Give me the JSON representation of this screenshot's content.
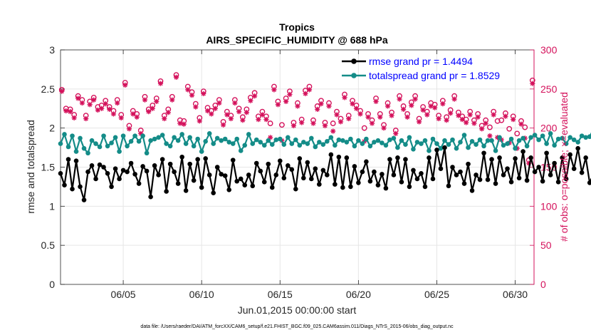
{
  "chart_data": {
    "type": "line",
    "title": "Tropics",
    "subtitle": "AIRS_SPECIFIC_HUMIDITY @ 688 hPa",
    "xlabel": "Jun.01,2015 00:00:00 start",
    "ylabel": "rmse and totalspread",
    "y2label": "# of obs: o=possible; ×=evaluated",
    "footnote": "data file: /Users/raeder/DAI/ATM_forcXX/CAM6_setup/f.e21.FHIST_BGC.f09_025.CAM6assim.011/Diags_NTrS_2015-06/obs_diag_output.nc",
    "xlim": [
      1.0,
      31.2
    ],
    "ylim": [
      0,
      3
    ],
    "y2lim": [
      0,
      300
    ],
    "x_ticks": [
      5,
      10,
      15,
      20,
      25,
      30
    ],
    "x_tick_labels": [
      "06/05",
      "06/10",
      "06/15",
      "06/20",
      "06/25",
      "06/30"
    ],
    "y_ticks": [
      0,
      0.5,
      1,
      1.5,
      2,
      2.5,
      3
    ],
    "y_tick_labels": [
      "0",
      "0.5",
      "1",
      "1.5",
      "2",
      "2.5",
      "3"
    ],
    "y2_ticks": [
      0,
      50,
      100,
      150,
      200,
      250,
      300
    ],
    "y2_tick_labels": [
      "0",
      "50",
      "100",
      "150",
      "200",
      "250",
      "300"
    ],
    "x_start": 1.0,
    "x_step": 0.25,
    "legend_position": "top-right",
    "series": [
      {
        "name": "rmse grand pr = 1.4494",
        "axis": "left",
        "color": "#000000",
        "values": [
          1.42,
          1.27,
          1.6,
          1.22,
          1.58,
          1.25,
          1.08,
          1.44,
          1.52,
          1.35,
          1.53,
          1.5,
          1.42,
          1.25,
          1.48,
          1.35,
          1.46,
          1.44,
          1.55,
          1.41,
          1.29,
          1.51,
          1.45,
          1.12,
          1.52,
          1.4,
          1.6,
          1.19,
          1.54,
          1.44,
          1.29,
          1.63,
          1.2,
          1.54,
          1.33,
          1.6,
          1.24,
          1.61,
          1.4,
          1.17,
          1.5,
          1.41,
          1.39,
          1.21,
          1.59,
          1.32,
          1.35,
          1.27,
          1.4,
          1.26,
          1.55,
          1.45,
          1.31,
          1.54,
          1.24,
          1.4,
          1.58,
          1.36,
          1.52,
          1.47,
          1.22,
          1.61,
          1.36,
          1.56,
          1.35,
          1.48,
          1.28,
          1.46,
          1.4,
          1.66,
          1.28,
          1.63,
          1.24,
          1.62,
          1.25,
          1.51,
          1.3,
          1.44,
          1.57,
          1.32,
          1.44,
          1.27,
          1.41,
          1.23,
          1.6,
          1.4,
          1.62,
          1.31,
          1.6,
          1.25,
          1.46,
          1.35,
          1.42,
          1.25,
          1.62,
          1.35,
          1.72,
          1.48,
          1.75,
          1.26,
          1.5,
          1.4,
          1.44,
          1.29,
          1.54,
          1.2,
          1.4,
          1.34,
          1.68,
          1.34,
          1.6,
          1.29,
          1.62,
          1.4,
          1.48,
          1.31,
          1.61,
          1.36,
          1.7,
          1.33,
          1.62,
          1.44,
          1.5,
          1.32,
          1.68,
          1.4,
          1.55,
          1.31,
          1.62,
          1.35,
          1.66,
          1.48,
          1.74,
          1.43,
          1.62,
          1.3,
          1.42,
          1.29,
          1.51,
          1.22,
          1.4,
          1.43,
          1.56,
          1.21,
          1.58,
          1.27,
          1.47,
          1.35,
          1.42,
          1.24,
          1.55,
          1.33,
          1.46,
          1.36,
          1.6,
          1.28,
          1.5,
          1.34,
          1.54,
          1.4,
          1.49,
          1.25,
          1.45,
          1.3,
          1.66,
          1.35,
          1.52,
          1.42,
          1.69,
          1.38,
          1.62,
          1.28,
          1.57,
          1.44,
          1.73,
          1.33,
          1.49,
          1.34,
          1.73,
          1.48,
          1.6,
          1.43,
          1.69,
          1.36,
          1.63,
          1.29,
          1.64,
          1.46,
          1.71,
          1.38,
          1.51,
          1.4,
          1.58,
          1.34,
          1.48,
          1.32,
          1.45,
          1.28,
          1.63,
          1.38,
          1.59,
          1.31,
          1.53,
          1.33,
          1.67,
          1.4,
          1.55,
          1.31,
          1.6,
          1.38,
          1.43,
          1.5,
          1.25,
          1.66,
          1.58,
          1.4,
          1.71,
          1.45,
          1.54,
          1.35,
          1.6,
          1.4,
          1.42,
          1.55,
          1.24,
          1.44,
          1.3,
          1.61,
          1.35,
          1.4,
          1.32,
          1.48,
          1.28,
          1.58,
          1.42,
          1.71,
          1.44,
          1.58,
          1.4,
          1.66,
          1.42,
          1.68,
          1.4,
          1.56,
          1.27,
          1.64,
          1.38,
          1.6,
          1.42,
          1.45,
          1.4,
          1.57,
          1.43,
          1.69,
          1.33,
          1.6,
          1.4
        ]
      },
      {
        "name": "totalspread grand pr = 1.8529",
        "axis": "left",
        "color": "#148c88",
        "values": [
          1.8,
          1.92,
          1.76,
          1.9,
          1.7,
          1.87,
          1.74,
          1.68,
          1.84,
          1.8,
          1.76,
          1.9,
          1.77,
          1.81,
          1.88,
          1.7,
          1.9,
          1.77,
          1.83,
          1.9,
          1.83,
          1.9,
          1.68,
          1.84,
          1.86,
          1.88,
          1.91,
          1.8,
          1.77,
          1.88,
          1.84,
          1.92,
          1.8,
          1.88,
          1.77,
          1.86,
          1.7,
          1.83,
          1.93,
          1.8,
          1.87,
          1.84,
          1.86,
          1.82,
          1.8,
          1.86,
          1.71,
          1.78,
          1.92,
          1.8,
          1.85,
          1.82,
          1.78,
          1.84,
          1.79,
          1.85,
          1.86,
          1.79,
          1.88,
          1.8,
          1.85,
          1.78,
          1.82,
          1.8,
          1.87,
          1.76,
          1.82,
          1.79,
          1.83,
          1.88,
          1.78,
          1.85,
          1.84,
          1.82,
          1.86,
          1.77,
          1.84,
          1.8,
          1.86,
          1.77,
          1.82,
          1.84,
          1.81,
          1.78,
          1.85,
          1.87,
          1.75,
          1.84,
          1.79,
          1.88,
          1.73,
          1.82,
          1.8,
          1.84,
          1.71,
          1.86,
          1.8,
          1.74,
          1.84,
          1.79,
          1.85,
          1.74,
          1.82,
          1.91,
          1.75,
          1.83,
          1.79,
          1.85,
          1.77,
          1.84,
          1.84,
          1.71,
          1.88,
          1.78,
          1.8,
          1.86,
          1.74,
          1.84,
          1.87,
          1.77,
          1.88,
          1.91,
          1.85,
          1.9,
          1.8,
          1.93,
          1.78,
          1.86,
          1.87,
          1.8,
          1.88,
          1.85,
          1.82,
          1.9,
          1.88,
          1.89,
          1.99,
          1.85,
          1.89,
          1.8,
          1.84,
          1.87,
          1.8,
          1.87,
          1.92,
          1.98,
          1.83,
          1.84,
          1.8,
          1.89,
          1.85,
          1.9,
          2.01,
          1.8,
          1.87,
          1.92,
          1.88,
          1.87,
          2.0,
          1.86,
          1.96,
          1.84,
          1.8,
          1.89,
          1.98,
          1.85,
          1.84,
          1.91,
          1.74,
          1.83,
          1.87,
          1.71,
          1.81,
          1.7,
          1.88,
          1.82,
          1.8,
          1.86,
          1.8,
          1.85,
          1.83,
          1.72,
          1.84,
          1.81,
          1.77,
          1.92,
          1.83,
          1.89,
          1.81,
          1.87,
          1.79,
          1.82,
          1.86,
          1.82,
          1.88,
          1.92,
          1.84,
          1.81,
          1.87,
          1.9,
          1.79,
          1.85,
          1.95,
          1.88,
          1.86,
          1.96,
          1.86,
          1.97,
          2.03,
          1.87,
          1.93,
          1.84,
          1.93,
          1.9,
          1.98,
          1.92,
          1.9,
          1.95,
          1.91,
          1.95,
          1.97,
          1.93,
          1.92,
          1.96,
          1.94,
          1.93,
          1.97,
          1.91,
          1.89,
          1.92,
          1.93,
          1.96,
          1.84,
          1.98,
          1.9,
          1.82,
          1.95,
          1.83,
          1.93,
          1.84,
          1.89,
          1.82,
          1.9,
          1.76,
          1.98,
          1.86,
          1.93,
          1.9,
          1.74,
          1.89,
          1.82,
          1.95,
          1.88,
          1.93,
          1.84,
          1.87,
          1.93,
          1.8,
          1.83,
          1.86
        ]
      },
      {
        "name": "# obs possible",
        "axis": "right",
        "marker": "o",
        "color": "#d4115b",
        "x": [
          1.08,
          1.35,
          1.62,
          1.87,
          2.12,
          2.38,
          2.62,
          2.87,
          3.12,
          3.38,
          3.62,
          3.87,
          4.12,
          4.38,
          4.62,
          4.87,
          5.12,
          5.38,
          5.62,
          5.87,
          6.12,
          6.38,
          6.62,
          6.87,
          7.12,
          7.38,
          7.62,
          7.87,
          8.12,
          8.38,
          8.62,
          8.87,
          9.12,
          9.38,
          9.62,
          9.87,
          10.12,
          10.38,
          10.62,
          10.87,
          11.12,
          11.38,
          11.62,
          11.87,
          12.12,
          12.38,
          12.62,
          12.87,
          13.12,
          13.38,
          13.62,
          13.87,
          14.12,
          14.38,
          14.62,
          14.87,
          15.12,
          15.38,
          15.62,
          15.87,
          16.12,
          16.38,
          16.62,
          16.87,
          17.12,
          17.38,
          17.62,
          17.87,
          18.12,
          18.38,
          18.62,
          18.87,
          19.12,
          19.38,
          19.62,
          19.87,
          20.12,
          20.38,
          20.62,
          20.87,
          21.12,
          21.38,
          21.62,
          21.87,
          22.12,
          22.38,
          22.62,
          22.87,
          23.12,
          23.38,
          23.62,
          23.87,
          24.12,
          24.38,
          24.62,
          24.87,
          25.12,
          25.38,
          25.62,
          25.87,
          26.12,
          26.38,
          26.62,
          26.87,
          27.12,
          27.38,
          27.62,
          27.87,
          28.12,
          28.38,
          28.62,
          28.87,
          29.12,
          29.38,
          29.62,
          29.87,
          30.12,
          30.38,
          30.62,
          30.87,
          31.1
        ],
        "values": [
          249,
          225,
          224,
          217,
          241,
          236,
          216,
          234,
          239,
          227,
          229,
          235,
          227,
          222,
          236,
          217,
          258,
          203,
          222,
          218,
          197,
          240,
          224,
          229,
          238,
          260,
          216,
          224,
          240,
          268,
          210,
          209,
          253,
          246,
          231,
          213,
          247,
          226,
          222,
          229,
          236,
          208,
          221,
          216,
          236,
          225,
          214,
          224,
          239,
          245,
          215,
          221,
          215,
          206,
          253,
          234,
          204,
          238,
          247,
          207,
          232,
          211,
          248,
          253,
          210,
          228,
          235,
          207,
          232,
          206,
          221,
          212,
          243,
          216,
          235,
          229,
          222,
          200,
          218,
          210,
          238,
          218,
          204,
          232,
          220,
          197,
          241,
          228,
          218,
          233,
          241,
          212,
          227,
          221,
          232,
          230,
          216,
          235,
          214,
          223,
          241,
          220,
          215,
          211,
          221,
          210,
          218,
          203,
          210,
          201,
          221,
          209,
          210,
          219,
          199,
          215,
          193,
          209,
          201,
          159,
          261
        ]
      },
      {
        "name": "# obs evaluated",
        "axis": "right",
        "marker": "*",
        "color": "#d4115b",
        "x": [
          1.08,
          1.35,
          1.62,
          1.87,
          2.12,
          2.38,
          2.62,
          2.87,
          3.12,
          3.38,
          3.62,
          3.87,
          4.12,
          4.38,
          4.62,
          4.87,
          5.12,
          5.38,
          5.62,
          5.87,
          6.12,
          6.38,
          6.62,
          6.87,
          7.12,
          7.38,
          7.62,
          7.87,
          8.12,
          8.38,
          8.62,
          8.87,
          9.12,
          9.38,
          9.62,
          9.87,
          10.12,
          10.38,
          10.62,
          10.87,
          11.12,
          11.38,
          11.62,
          11.87,
          12.12,
          12.38,
          12.62,
          12.87,
          13.12,
          13.38,
          13.62,
          13.87,
          14.12,
          14.38,
          14.62,
          14.87,
          15.12,
          15.38,
          15.62,
          15.87,
          16.12,
          16.38,
          16.62,
          16.87,
          17.12,
          17.38,
          17.62,
          17.87,
          18.12,
          18.38,
          18.62,
          18.87,
          19.12,
          19.38,
          19.62,
          19.87,
          20.12,
          20.38,
          20.62,
          20.87,
          21.12,
          21.38,
          21.62,
          21.87,
          22.12,
          22.38,
          22.62,
          22.87,
          23.12,
          23.38,
          23.62,
          23.87,
          24.12,
          24.38,
          24.62,
          24.87,
          25.12,
          25.38,
          25.62,
          25.87,
          26.12,
          26.38,
          26.62,
          26.87,
          27.12,
          27.38,
          27.62,
          27.87,
          28.12,
          28.38,
          28.62,
          28.87,
          29.12,
          29.38,
          29.62,
          29.87,
          30.12,
          30.38,
          30.62,
          30.87,
          31.1
        ],
        "values": [
          247,
          222,
          221,
          213,
          238,
          232,
          212,
          230,
          236,
          223,
          225,
          231,
          224,
          218,
          232,
          213,
          255,
          199,
          218,
          214,
          193,
          236,
          221,
          225,
          234,
          257,
          212,
          220,
          236,
          265,
          206,
          205,
          249,
          242,
          227,
          209,
          244,
          222,
          218,
          225,
          232,
          204,
          217,
          212,
          232,
          221,
          210,
          220,
          235,
          241,
          211,
          217,
          211,
          188,
          249,
          230,
          184,
          234,
          243,
          203,
          228,
          207,
          244,
          249,
          206,
          224,
          231,
          203,
          228,
          196,
          217,
          208,
          239,
          212,
          231,
          225,
          218,
          183,
          214,
          206,
          234,
          214,
          200,
          228,
          216,
          193,
          237,
          224,
          214,
          229,
          237,
          208,
          223,
          217,
          228,
          226,
          212,
          231,
          210,
          219,
          237,
          216,
          211,
          207,
          217,
          206,
          214,
          199,
          206,
          190,
          217,
          188,
          185,
          215,
          181,
          211,
          174,
          205,
          187,
          155,
          257
        ]
      }
    ]
  }
}
